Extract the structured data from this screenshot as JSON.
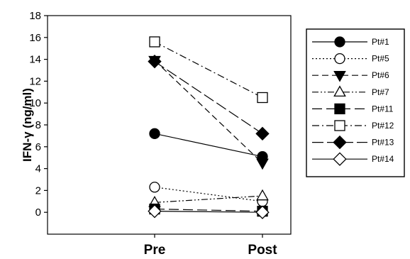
{
  "chart_data": {
    "type": "line",
    "ylabel": "IFN-γ (ng/ml)",
    "xlabel": "",
    "categories": [
      "Pre",
      "Post"
    ],
    "ylim": [
      -2,
      18
    ],
    "yticks": [
      "0",
      "2",
      "4",
      "6",
      "8",
      "10",
      "12",
      "14",
      "16",
      "18"
    ],
    "legend_position": "top-right",
    "series": [
      {
        "name": "Pt#1",
        "values": [
          7.2,
          5.1
        ],
        "marker": "circle",
        "filled": true,
        "dash": "solid"
      },
      {
        "name": "Pt#5",
        "values": [
          2.3,
          1.0
        ],
        "marker": "circle",
        "filled": false,
        "dash": "dotted"
      },
      {
        "name": "Pt#6",
        "values": [
          13.9,
          4.5
        ],
        "marker": "triangle-down",
        "filled": true,
        "dash": "dashed"
      },
      {
        "name": "Pt#7",
        "values": [
          0.9,
          1.5
        ],
        "marker": "triangle-up",
        "filled": false,
        "dash": "dashdotdot"
      },
      {
        "name": "Pt#11",
        "values": [
          0.3,
          0.1
        ],
        "marker": "square",
        "filled": true,
        "dash": "longdash"
      },
      {
        "name": "Pt#12",
        "values": [
          15.6,
          10.5
        ],
        "marker": "square",
        "filled": false,
        "dash": "dashdot"
      },
      {
        "name": "Pt#13",
        "values": [
          13.8,
          7.2
        ],
        "marker": "diamond",
        "filled": true,
        "dash": "longdash2"
      },
      {
        "name": "Pt#14",
        "values": [
          0.1,
          0.0
        ],
        "marker": "diamond",
        "filled": false,
        "dash": "solid"
      }
    ]
  }
}
